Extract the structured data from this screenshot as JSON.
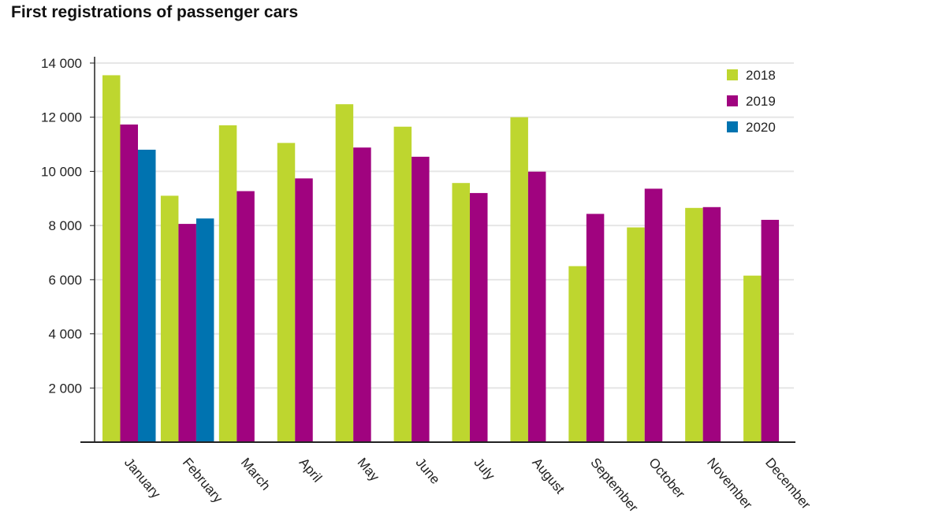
{
  "page_title": "First registrations of passenger cars",
  "chart_data": {
    "type": "bar",
    "title": "First registrations of passenger cars",
    "xlabel": "",
    "ylabel": "",
    "ylim": [
      0,
      14000
    ],
    "yticks": [
      2000,
      4000,
      6000,
      8000,
      10000,
      12000,
      14000
    ],
    "ytick_labels": [
      "2 000",
      "4 000",
      "6 000",
      "8 000",
      "10 000",
      "12 000",
      "14 000"
    ],
    "grid": true,
    "legend_position": "top-right",
    "categories": [
      "January",
      "February",
      "March",
      "April",
      "May",
      "June",
      "July",
      "August",
      "September",
      "October",
      "November",
      "December"
    ],
    "series": [
      {
        "name": "2018",
        "color": "#bed62f",
        "values": [
          13550,
          9100,
          11700,
          11050,
          12480,
          11650,
          9570,
          12000,
          6500,
          7930,
          8650,
          6150
        ]
      },
      {
        "name": "2019",
        "color": "#a0037f",
        "values": [
          11730,
          8060,
          9270,
          9740,
          10880,
          10540,
          9200,
          9990,
          8430,
          9360,
          8680,
          8210
        ]
      },
      {
        "name": "2020",
        "color": "#0073b0",
        "values": [
          10800,
          8260,
          null,
          null,
          null,
          null,
          null,
          null,
          null,
          null,
          null,
          null
        ]
      }
    ]
  }
}
